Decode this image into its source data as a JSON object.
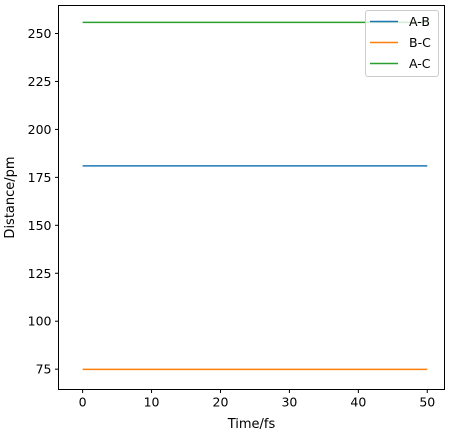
{
  "chart_data": {
    "type": "line",
    "title": "",
    "xlabel": "Time/fs",
    "ylabel": "Distance/pm",
    "xlim": [
      -3.5,
      52.5
    ],
    "ylim": [
      64.4,
      264.6
    ],
    "xticks": [
      0,
      10,
      20,
      30,
      40,
      50
    ],
    "yticks": [
      75,
      100,
      125,
      150,
      175,
      200,
      225,
      250
    ],
    "grid": false,
    "legend_position": "top-right",
    "series": [
      {
        "name": "A-B",
        "color": "#1f77b4",
        "x": [
          0,
          50
        ],
        "y": [
          181,
          181
        ]
      },
      {
        "name": "B-C",
        "color": "#ff7f0e",
        "x": [
          0,
          50
        ],
        "y": [
          74.9,
          74.9
        ]
      },
      {
        "name": "A-C",
        "color": "#2ca02c",
        "x": [
          0,
          50
        ],
        "y": [
          255.8,
          255.8
        ]
      }
    ]
  }
}
